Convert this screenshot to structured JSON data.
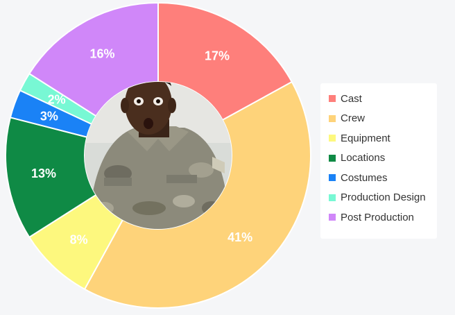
{
  "chart_data": {
    "type": "pie",
    "variant": "donut",
    "categories": [
      "Cast",
      "Crew",
      "Equipment",
      "Locations",
      "Costumes",
      "Production Design",
      "Post Production"
    ],
    "values": [
      17,
      41,
      8,
      13,
      3,
      2,
      16
    ],
    "value_labels": [
      "17%",
      "41%",
      "8%",
      "13%",
      "3%",
      "2%",
      "16%"
    ],
    "colors": [
      "#fe7f7b",
      "#fed37a",
      "#fdf87e",
      "#0f8a45",
      "#1a82f6",
      "#78f8d4",
      "#d087f9"
    ],
    "legend": {
      "position": "right",
      "entries": [
        "Cast",
        "Crew",
        "Equipment",
        "Locations",
        "Costumes",
        "Production Design",
        "Post Production"
      ]
    },
    "center_image": "photo-of-surprised-man-in-camouflage-uniform",
    "title": "",
    "xlabel": "",
    "ylabel": ""
  }
}
